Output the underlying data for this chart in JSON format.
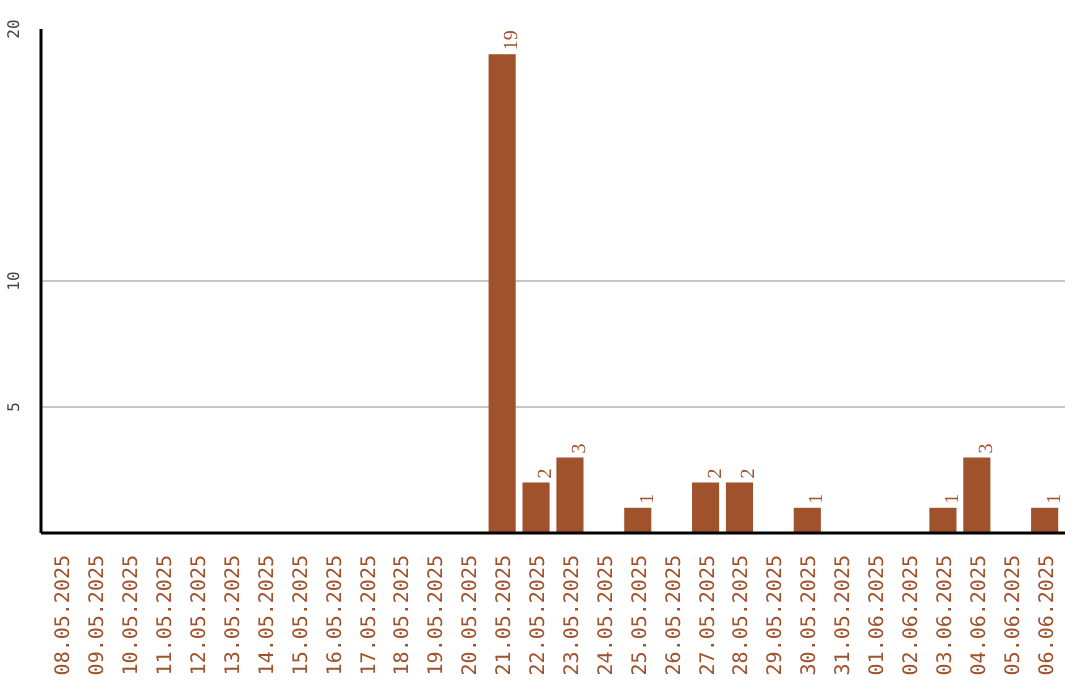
{
  "chart_data": {
    "type": "bar",
    "categories": [
      "08.05.2025",
      "09.05.2025",
      "10.05.2025",
      "11.05.2025",
      "12.05.2025",
      "13.05.2025",
      "14.05.2025",
      "15.05.2025",
      "16.05.2025",
      "17.05.2025",
      "18.05.2025",
      "19.05.2025",
      "20.05.2025",
      "21.05.2025",
      "22.05.2025",
      "23.05.2025",
      "24.05.2025",
      "25.05.2025",
      "26.05.2025",
      "27.05.2025",
      "28.05.2025",
      "29.05.2025",
      "30.05.2025",
      "31.05.2025",
      "01.06.2025",
      "02.06.2025",
      "03.06.2025",
      "04.06.2025",
      "05.06.2025",
      "06.06.2025"
    ],
    "values": [
      0,
      0,
      0,
      0,
      0,
      0,
      0,
      0,
      0,
      0,
      0,
      0,
      0,
      19,
      2,
      3,
      0,
      1,
      0,
      2,
      2,
      0,
      1,
      0,
      0,
      0,
      1,
      3,
      0,
      1
    ],
    "value_labels": [
      null,
      null,
      null,
      null,
      null,
      null,
      null,
      null,
      null,
      null,
      null,
      null,
      null,
      "19",
      "2",
      "3",
      null,
      "1",
      null,
      "2",
      "2",
      null,
      "1",
      null,
      null,
      null,
      "1",
      "3",
      null,
      "1"
    ],
    "color": "#a0522d",
    "ylim": [
      0,
      20
    ],
    "yticks": [
      5,
      10,
      20
    ],
    "grid": "y"
  }
}
